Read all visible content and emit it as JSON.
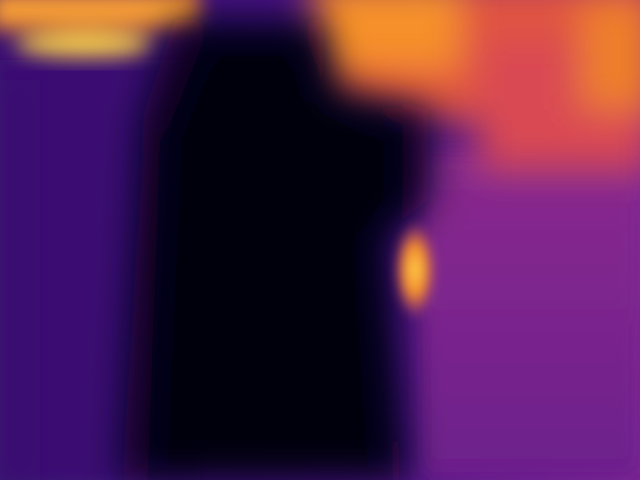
{
  "image": {
    "kind": "depth-map / thermal-style heatmap photo",
    "colormap": "inferno",
    "palette": {
      "deep": "#06010f",
      "dark_purple": "#2b0a63",
      "purple": "#4b1285",
      "magenta": "#8b2a8a",
      "pink_red": "#c83f6c",
      "orange": "#f07a2e",
      "yellow": "#fbd54a"
    },
    "regions": [
      "foreground-figure",
      "left-wall",
      "right-wall",
      "upper-right-bright-area",
      "upper-left-bright-area",
      "side-bright-spot"
    ]
  }
}
